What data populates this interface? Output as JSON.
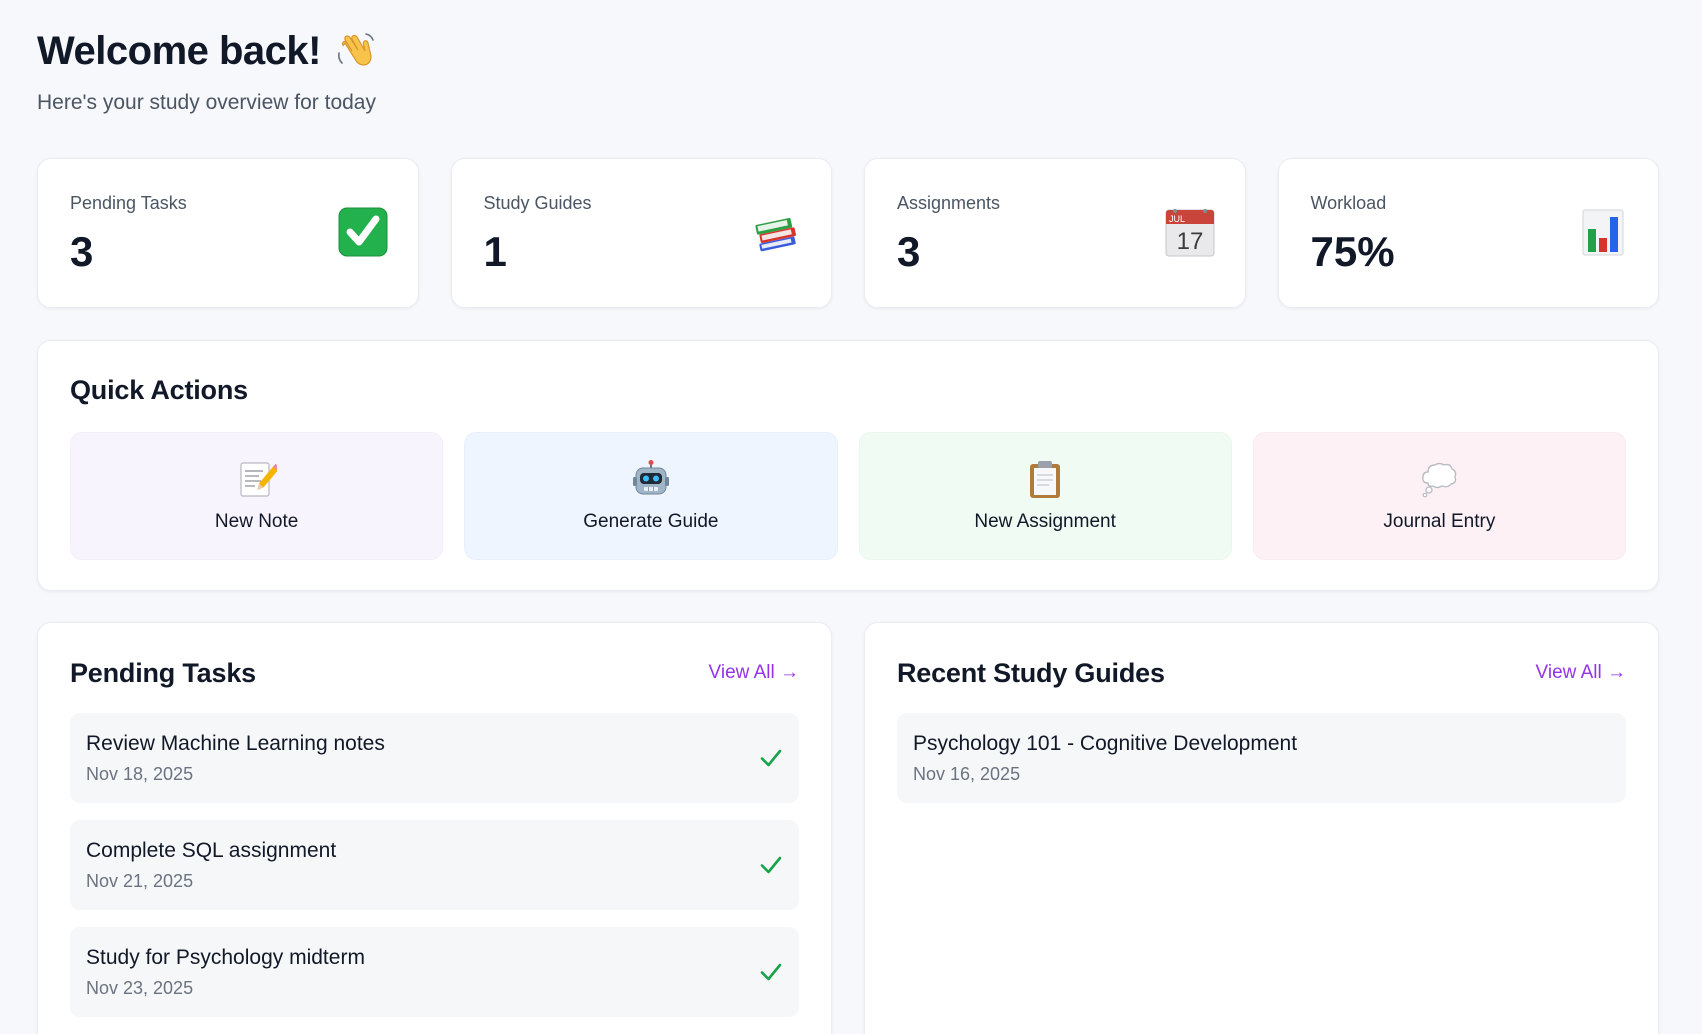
{
  "header": {
    "title": "Welcome back!",
    "wave_icon": "waving-hand-icon",
    "subtitle": "Here's your study overview for today"
  },
  "stats": [
    {
      "label": "Pending Tasks",
      "value": "3",
      "icon": "check-mark-button-icon"
    },
    {
      "label": "Study Guides",
      "value": "1",
      "icon": "books-icon"
    },
    {
      "label": "Assignments",
      "value": "3",
      "icon": "calendar-icon"
    },
    {
      "label": "Workload",
      "value": "75%",
      "icon": "bar-chart-icon"
    }
  ],
  "calendar_icon": {
    "month": "JUL",
    "day": "17"
  },
  "quick_actions": {
    "title": "Quick Actions",
    "items": [
      {
        "label": "New Note",
        "icon": "memo-icon",
        "bg": "#f7f4fe"
      },
      {
        "label": "Generate Guide",
        "icon": "robot-icon",
        "bg": "#eef5ff"
      },
      {
        "label": "New Assignment",
        "icon": "clipboard-icon",
        "bg": "#effbf3"
      },
      {
        "label": "Journal Entry",
        "icon": "thought-bubble-icon",
        "bg": "#fdf1f6"
      }
    ]
  },
  "pending_tasks": {
    "title": "Pending Tasks",
    "view_all": "View All →",
    "items": [
      {
        "title": "Review Machine Learning notes",
        "date": "Nov 18, 2025"
      },
      {
        "title": "Complete SQL assignment",
        "date": "Nov 21, 2025"
      },
      {
        "title": "Study for Psychology midterm",
        "date": "Nov 23, 2025"
      }
    ]
  },
  "recent_guides": {
    "title": "Recent Study Guides",
    "view_all": "View All →",
    "items": [
      {
        "title": "Psychology 101 - Cognitive Development",
        "date": "Nov 16, 2025"
      }
    ]
  },
  "colors": {
    "accent": "#9333ea",
    "check": "#16a34a",
    "page_bg": "#f6f8fb"
  }
}
